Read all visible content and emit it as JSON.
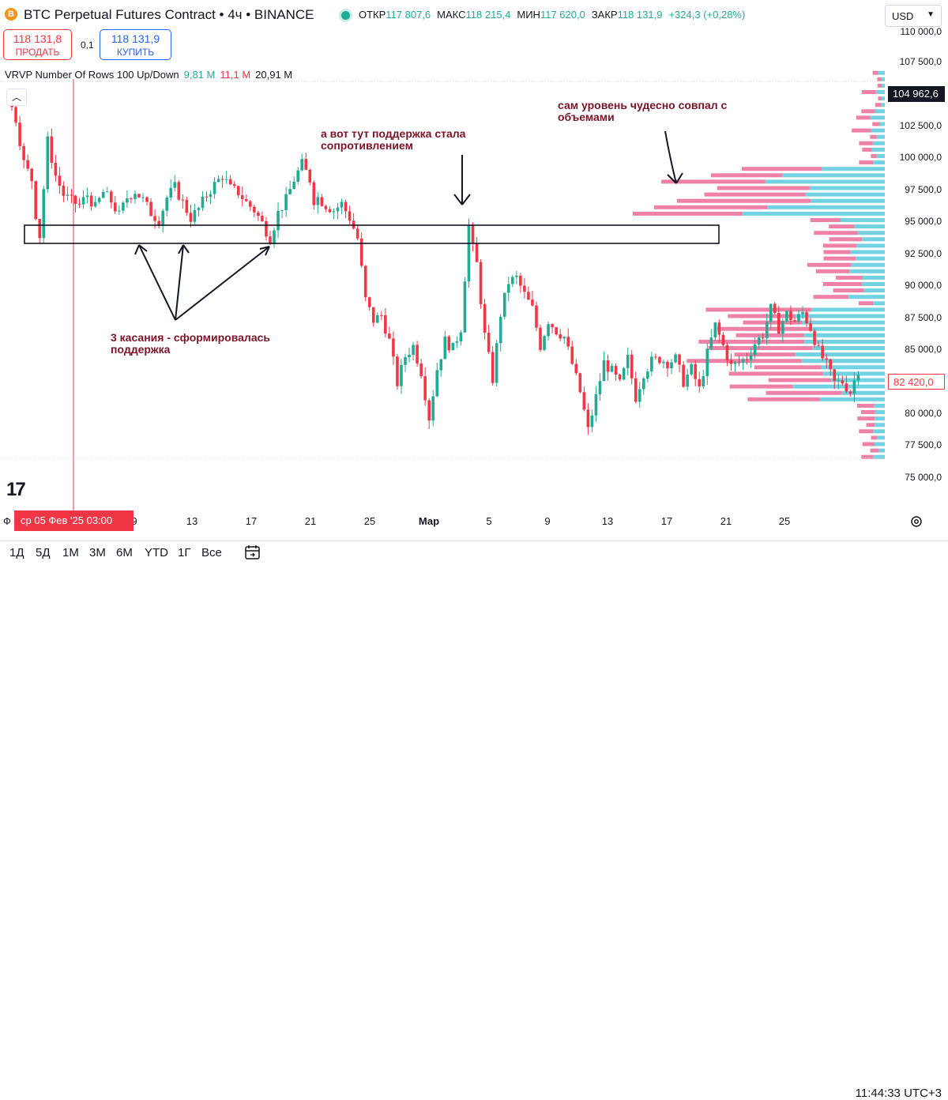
{
  "header": {
    "symbol_icon": "B",
    "title": "BTC Perpetual Futures Contract • 4ч • BINANCE",
    "ohlc": [
      {
        "label": "ОТКР",
        "value": "117 807,6"
      },
      {
        "label": "МАКС",
        "value": "118 215,4"
      },
      {
        "label": "МИН",
        "value": "117 620,0"
      },
      {
        "label": "ЗАКР",
        "value": "118 131,9"
      }
    ],
    "change": "+324,3 (+0,28%)",
    "currency": "USD"
  },
  "trade": {
    "sell_price": "118 131,8",
    "sell_label": "ПРОДАТЬ",
    "spread": "0,1",
    "buy_price": "118 131,9",
    "buy_label": "КУПИТЬ"
  },
  "indicator": {
    "name": "VRVP Number Of Rows 100 Up/Down",
    "up_volume": "9,81 M",
    "down_volume": "11,1 M",
    "total_volume": "20,91 M"
  },
  "price_axis": {
    "labels": [
      "110 000,0",
      "107 500,0",
      "102 500,0",
      "100 000,0",
      "97 500,0",
      "95 000,0",
      "92 500,0",
      "90 000,0",
      "87 500,0",
      "85 000,0",
      "80 000,0",
      "77 500,0",
      "75 000,0"
    ],
    "last_price_tag": "104 962,6",
    "current_price_tag": "82 420,0"
  },
  "time_axis": {
    "labels": [
      "Ф",
      "9",
      "13",
      "17",
      "21",
      "25",
      "Мар",
      "5",
      "9",
      "13",
      "17",
      "21",
      "25"
    ],
    "cursor_date": "ср 05 Фев '25   03:00"
  },
  "annotations": {
    "touches": "3 касания - сформировалась\nподдержка",
    "flip": "а вот тут поддержка стала\nсопротивлением",
    "volume": "сам уровень чудесно совпал с\nобъемами"
  },
  "bottom_bar": {
    "ranges": [
      "1Д",
      "5Д",
      "1М",
      "3М",
      "6М",
      "YTD",
      "1Г",
      "Все"
    ],
    "clock": "11:44:33 UTC+3"
  },
  "colors": {
    "up_candle": "#22ab94",
    "down_candle": "#f23645",
    "vp_up": "#4fc7d9",
    "vp_down": "#ec6b96",
    "annotation": "#7a1426"
  },
  "chart_data": {
    "type": "candlestick",
    "ylim": [
      75000,
      110000
    ],
    "support_zone": [
      93200,
      94600
    ],
    "price_path": [
      [
        0,
        104500
      ],
      [
        2,
        103000
      ],
      [
        4,
        99500
      ],
      [
        6,
        98200
      ],
      [
        7,
        95500
      ],
      [
        8,
        93800
      ],
      [
        9,
        97500
      ],
      [
        10,
        101200
      ],
      [
        12,
        98500
      ],
      [
        14,
        97000
      ],
      [
        16,
        96500
      ],
      [
        18,
        96200
      ],
      [
        20,
        97000
      ],
      [
        22,
        96000
      ],
      [
        24,
        97200
      ],
      [
        26,
        96500
      ],
      [
        28,
        95400
      ],
      [
        30,
        96800
      ],
      [
        32,
        97300
      ],
      [
        34,
        96600
      ],
      [
        36,
        95600
      ],
      [
        38,
        95000
      ],
      [
        40,
        96800
      ],
      [
        42,
        97600
      ],
      [
        44,
        96400
      ],
      [
        46,
        95200
      ],
      [
        48,
        95900
      ],
      [
        50,
        97000
      ],
      [
        52,
        97800
      ],
      [
        54,
        98500
      ],
      [
        56,
        97500
      ],
      [
        58,
        97200
      ],
      [
        60,
        96400
      ],
      [
        62,
        95800
      ],
      [
        64,
        94800
      ],
      [
        66,
        93600
      ],
      [
        68,
        95600
      ],
      [
        70,
        96600
      ],
      [
        72,
        98200
      ],
      [
        74,
        99400
      ],
      [
        76,
        98200
      ],
      [
        77,
        96600
      ],
      [
        78,
        96800
      ],
      [
        80,
        96200
      ],
      [
        82,
        95800
      ],
      [
        84,
        96300
      ],
      [
        86,
        95200
      ],
      [
        88,
        93600
      ],
      [
        90,
        88800
      ],
      [
        92,
        87200
      ],
      [
        94,
        87600
      ],
      [
        96,
        85600
      ],
      [
        98,
        82300
      ],
      [
        100,
        84400
      ],
      [
        102,
        85200
      ],
      [
        104,
        83200
      ],
      [
        106,
        79600
      ],
      [
        108,
        83400
      ],
      [
        110,
        85600
      ],
      [
        112,
        85000
      ],
      [
        114,
        86600
      ],
      [
        116,
        94600
      ],
      [
        117,
        92800
      ],
      [
        118,
        91600
      ],
      [
        120,
        86000
      ],
      [
        122,
        82600
      ],
      [
        124,
        87700
      ],
      [
        126,
        90200
      ],
      [
        128,
        90500
      ],
      [
        130,
        89200
      ],
      [
        132,
        88100
      ],
      [
        134,
        85200
      ],
      [
        136,
        87200
      ],
      [
        138,
        86400
      ],
      [
        140,
        85900
      ],
      [
        142,
        83800
      ],
      [
        144,
        81600
      ],
      [
        146,
        78600
      ],
      [
        148,
        81200
      ],
      [
        150,
        83900
      ],
      [
        152,
        83200
      ],
      [
        154,
        82200
      ],
      [
        156,
        84200
      ],
      [
        158,
        81200
      ],
      [
        160,
        83100
      ],
      [
        162,
        84000
      ],
      [
        164,
        84200
      ],
      [
        166,
        83900
      ],
      [
        168,
        84200
      ],
      [
        170,
        82400
      ],
      [
        172,
        83400
      ],
      [
        174,
        81800
      ],
      [
        176,
        84600
      ],
      [
        178,
        86800
      ],
      [
        180,
        85200
      ],
      [
        182,
        83600
      ],
      [
        184,
        83900
      ],
      [
        186,
        84300
      ],
      [
        188,
        85400
      ],
      [
        190,
        86100
      ],
      [
        192,
        88100
      ],
      [
        194,
        86600
      ],
      [
        196,
        87700
      ],
      [
        198,
        87100
      ],
      [
        200,
        87800
      ],
      [
        202,
        86600
      ],
      [
        204,
        84800
      ],
      [
        206,
        83700
      ],
      [
        208,
        82300
      ],
      [
        210,
        82400
      ],
      [
        212,
        81600
      ],
      [
        214,
        83400
      ]
    ]
  }
}
